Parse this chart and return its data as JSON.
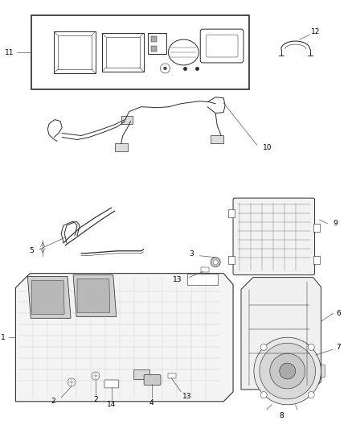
{
  "bg_color": "#ffffff",
  "line_color": "#2a2a2a",
  "label_color": "#000000",
  "fig_width": 4.38,
  "fig_height": 5.33,
  "dpi": 100,
  "lw": 0.7,
  "leader_lw": 0.5,
  "label_fs": 6.5
}
